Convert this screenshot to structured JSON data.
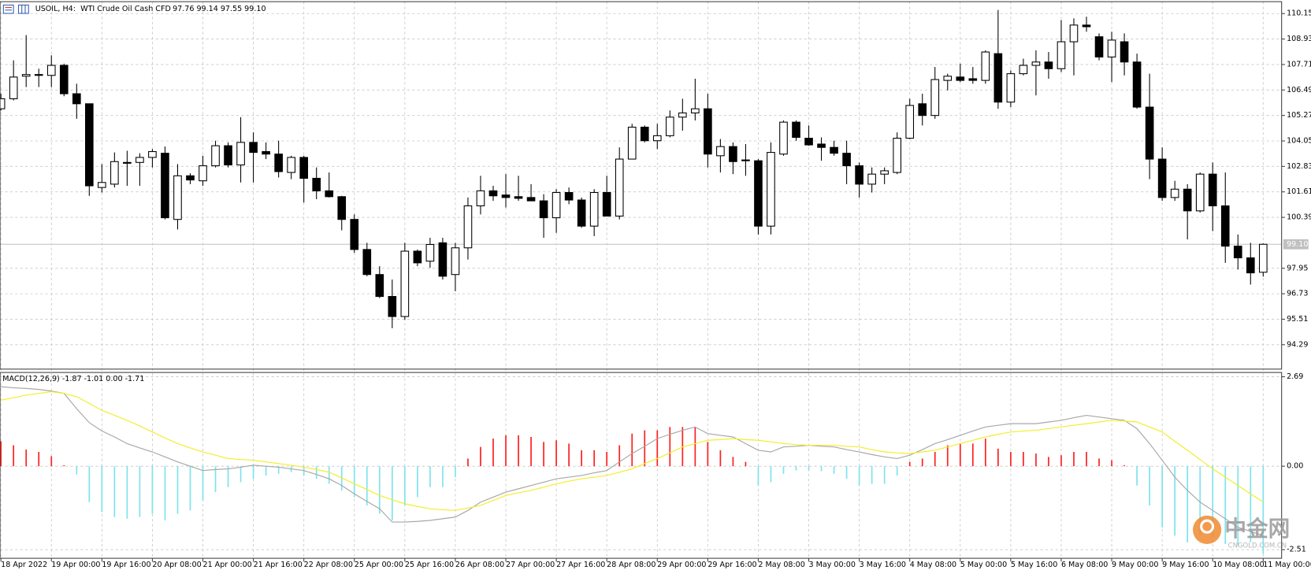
{
  "chart_data": [
    {
      "type": "candlestick",
      "title": "USOIL, H4:",
      "subtitle": "WTI Crude Oil Cash CFD",
      "ohlc_label": "97.76 99.14 97.55 99.10",
      "categories": [
        "18 Apr 2022",
        null,
        null,
        null,
        "19 Apr 00:00",
        null,
        null,
        null,
        "19 Apr 16:00",
        null,
        null,
        null,
        "20 Apr 08:00",
        null,
        null,
        null,
        "21 Apr 00:00",
        null,
        null,
        null,
        "21 Apr 16:00",
        null,
        null,
        null,
        "22 Apr 08:00",
        null,
        null,
        null,
        "25 Apr 00:00",
        null,
        null,
        null,
        "25 Apr 16:00",
        null,
        null,
        null,
        "26 Apr 08:00",
        null,
        null,
        null,
        "27 Apr 00:00",
        null,
        null,
        null,
        "27 Apr 16:00",
        null,
        null,
        null,
        "28 Apr 08:00",
        null,
        null,
        null,
        "29 Apr 00:00",
        null,
        null,
        null,
        "29 Apr 16:00",
        null,
        null,
        null,
        "2 May 08:00",
        null,
        null,
        null,
        "3 May 00:00",
        null,
        null,
        null,
        "3 May 16:00",
        null,
        null,
        null,
        "4 May 08:00",
        null,
        null,
        null,
        "5 May 00:00",
        null,
        null,
        null,
        "5 May 16:00",
        null,
        null,
        null,
        "6 May 08:00",
        null,
        null,
        null,
        "9 May 00:00",
        null,
        null,
        null,
        "9 May 16:00",
        null,
        null,
        null,
        "10 May 08:00",
        null,
        null,
        null,
        "11 May 00:00"
      ],
      "open": [
        105.59,
        106.07,
        107.15,
        107.19,
        107.19,
        107.67,
        106.31,
        105.83,
        101.82,
        101.98,
        102.98,
        103.02,
        103.26,
        103.46,
        100.29,
        102.38,
        102.14,
        102.86,
        103.82,
        102.9,
        103.98,
        103.54,
        103.42,
        102.54,
        103.26,
        102.26,
        101.66,
        101.38,
        100.29,
        98.85,
        97.65,
        96.6,
        95.64,
        98.77,
        98.29,
        99.17,
        97.65,
        98.93,
        100.94,
        101.66,
        101.46,
        101.38,
        101.34,
        101.18,
        100.37,
        101.58,
        101.22,
        99.97,
        101.58,
        100.45,
        103.18,
        104.71,
        104.06,
        104.3,
        105.19,
        105.39,
        105.59,
        103.34,
        103.78,
        103.14,
        103.1,
        99.97,
        103.42,
        104.95,
        104.18,
        103.9,
        103.74,
        103.46,
        102.86,
        101.98,
        102.46,
        102.54,
        104.18,
        105.83,
        105.27,
        106.95,
        107.11,
        107.03,
        106.95,
        108.23,
        105.91,
        107.27,
        107.67,
        107.83,
        107.51,
        108.8,
        109.6,
        109.04,
        108.07,
        108.8,
        107.83,
        105.67,
        103.18,
        101.34,
        101.74,
        100.7,
        102.46,
        100.94,
        99.01,
        98.45,
        97.76
      ],
      "high": [
        106.31,
        107.91,
        109.12,
        107.51,
        108.15,
        107.75,
        106.79,
        105.83,
        102.94,
        103.5,
        103.58,
        103.46,
        103.66,
        103.78,
        102.94,
        102.5,
        103.34,
        104.06,
        103.98,
        105.19,
        104.46,
        103.98,
        104.06,
        103.34,
        103.34,
        102.78,
        102.54,
        101.42,
        100.53,
        99.17,
        98.05,
        97.41,
        99.17,
        98.85,
        99.41,
        99.41,
        99.17,
        101.34,
        102.38,
        101.9,
        102.46,
        102.38,
        101.98,
        101.5,
        101.74,
        101.82,
        101.34,
        101.74,
        102.38,
        103.74,
        104.87,
        104.79,
        104.87,
        105.51,
        106.07,
        107.03,
        106.31,
        104.14,
        103.98,
        103.9,
        103.18,
        103.98,
        105.03,
        105.03,
        104.79,
        104.22,
        104.06,
        104.06,
        103.02,
        102.78,
        102.78,
        104.46,
        106.07,
        106.31,
        107.59,
        107.27,
        107.75,
        107.59,
        108.39,
        110.32,
        107.43,
        107.99,
        108.39,
        108.31,
        109.84,
        109.92,
        110.0,
        109.2,
        109.28,
        109.2,
        108.23,
        107.27,
        103.74,
        102.14,
        101.98,
        102.54,
        103.02,
        102.54,
        99.57,
        99.17,
        99.14
      ],
      "low": [
        105.51,
        105.99,
        106.63,
        106.63,
        106.63,
        106.19,
        105.11,
        101.42,
        101.58,
        101.82,
        101.9,
        101.9,
        102.78,
        100.29,
        99.81,
        101.98,
        101.9,
        102.78,
        102.78,
        102.06,
        102.06,
        103.18,
        102.3,
        102.22,
        101.1,
        101.26,
        101.34,
        99.77,
        98.69,
        97.57,
        96.52,
        95.08,
        95.48,
        98.05,
        97.97,
        97.41,
        96.85,
        98.37,
        100.53,
        101.18,
        100.86,
        101.18,
        101.18,
        99.41,
        99.65,
        101.02,
        99.89,
        99.49,
        100.45,
        100.29,
        103.18,
        103.98,
        103.66,
        104.22,
        104.54,
        105.03,
        102.78,
        102.54,
        102.46,
        102.38,
        99.57,
        99.57,
        103.34,
        104.06,
        103.82,
        103.1,
        103.34,
        101.98,
        101.34,
        101.58,
        101.98,
        102.46,
        104.14,
        104.79,
        105.11,
        106.47,
        106.87,
        106.79,
        106.79,
        105.59,
        105.67,
        107.19,
        106.23,
        107.03,
        107.35,
        107.19,
        109.28,
        107.91,
        106.87,
        107.19,
        105.59,
        102.22,
        101.18,
        101.18,
        99.33,
        100.62,
        99.73,
        98.21,
        97.89,
        97.17,
        97.55
      ],
      "close": [
        106.07,
        107.11,
        107.23,
        107.23,
        107.67,
        106.31,
        105.83,
        101.9,
        102.06,
        103.06,
        103.02,
        103.26,
        103.54,
        100.37,
        102.38,
        102.18,
        102.86,
        103.82,
        102.9,
        103.98,
        103.5,
        103.42,
        102.58,
        103.26,
        102.26,
        101.66,
        101.38,
        100.29,
        98.85,
        97.65,
        96.6,
        95.64,
        98.77,
        98.21,
        99.09,
        97.57,
        98.93,
        100.94,
        101.66,
        101.42,
        101.34,
        101.3,
        101.18,
        100.37,
        101.58,
        101.22,
        99.97,
        101.58,
        100.45,
        103.18,
        104.71,
        104.06,
        104.3,
        105.19,
        105.39,
        105.59,
        103.42,
        103.78,
        103.06,
        103.1,
        99.97,
        103.5,
        104.95,
        104.22,
        103.86,
        103.74,
        103.46,
        102.86,
        101.98,
        102.46,
        102.62,
        104.18,
        105.75,
        105.27,
        106.99,
        107.15,
        106.95,
        106.95,
        108.31,
        105.91,
        107.27,
        107.67,
        107.83,
        107.51,
        108.8,
        109.6,
        109.52,
        108.07,
        108.88,
        107.83,
        105.67,
        103.18,
        101.34,
        101.74,
        100.7,
        102.46,
        100.94,
        99.01,
        98.45,
        97.73,
        99.1
      ],
      "ylim": [
        93.12,
        110.72
      ],
      "yticks": [
        110.15,
        108.93,
        107.71,
        106.49,
        105.27,
        104.05,
        102.83,
        101.61,
        {
          "value": 100.39,
          "label": "100.39"
        },
        97.95,
        96.73,
        95.51,
        94.29
      ],
      "last_price": {
        "value": 99.1,
        "label": "99.10"
      },
      "grid": true,
      "up_color": "#ffffff",
      "down_color": "#000000",
      "line_color": "#000000"
    },
    {
      "type": "macd",
      "title": "MACD(12,26,9) -1.87 -1.01 0.00 -1.71",
      "histogram": {
        "color": "#ff2020",
        "negative_color": "#7fe3ee",
        "values": [
          0.75,
          0.63,
          0.5,
          0.43,
          0.3,
          0.03,
          -0.25,
          -1.08,
          -1.38,
          -1.53,
          -1.58,
          -1.53,
          -1.43,
          -1.63,
          -1.43,
          -1.33,
          -1.03,
          -0.78,
          -0.63,
          -0.48,
          -0.38,
          -0.28,
          -0.23,
          -0.18,
          -0.28,
          -0.38,
          -0.53,
          -0.73,
          -0.93,
          -1.18,
          -1.43,
          -1.63,
          -1.18,
          -0.93,
          -0.63,
          -0.63,
          -0.33,
          0.23,
          0.58,
          0.83,
          0.93,
          0.93,
          0.88,
          0.73,
          0.78,
          0.68,
          0.48,
          0.48,
          0.43,
          0.63,
          0.98,
          1.08,
          1.08,
          1.18,
          1.18,
          1.18,
          0.73,
          0.48,
          0.28,
          0.13,
          -0.58,
          -0.48,
          -0.23,
          -0.13,
          -0.13,
          -0.15,
          -0.23,
          -0.38,
          -0.58,
          -0.53,
          -0.53,
          -0.28,
          0.13,
          0.23,
          0.43,
          0.63,
          0.68,
          0.68,
          0.83,
          0.53,
          0.43,
          0.43,
          0.38,
          0.28,
          0.33,
          0.43,
          0.43,
          0.23,
          0.18,
          0.03,
          -0.58,
          -1.18,
          -1.84,
          -2.09,
          -2.29,
          -2.09,
          -2.14,
          -2.34,
          -2.39,
          -2.29,
          -2.64
        ]
      },
      "main": {
        "color": "#a8a8a8",
        "values": [
          2.39,
          2.36,
          2.34,
          2.31,
          2.26,
          2.19,
          1.73,
          1.31,
          1.06,
          0.88,
          0.68,
          0.55,
          0.43,
          0.28,
          0.13,
          0,
          -0.13,
          -0.1,
          -0.08,
          -0.03,
          0.03,
          0,
          -0.03,
          -0.08,
          -0.13,
          -0.25,
          -0.38,
          -0.58,
          -0.83,
          -1.06,
          -1.28,
          -1.68,
          -1.68,
          -1.66,
          -1.63,
          -1.58,
          -1.53,
          -1.33,
          -1.08,
          -0.93,
          -0.78,
          -0.68,
          -0.58,
          -0.48,
          -0.38,
          -0.33,
          -0.28,
          -0.2,
          -0.13,
          0.13,
          0.38,
          0.6,
          0.83,
          0.96,
          1.08,
          1.18,
          0.98,
          0.93,
          0.88,
          0.68,
          0.48,
          0.43,
          0.58,
          0.6,
          0.63,
          0.6,
          0.58,
          0.5,
          0.43,
          0.35,
          0.28,
          0.23,
          0.33,
          0.5,
          0.68,
          0.8,
          0.93,
          1.06,
          1.18,
          1.23,
          1.28,
          1.28,
          1.28,
          1.33,
          1.38,
          1.46,
          1.53,
          1.48,
          1.43,
          1.38,
          1.13,
          0.68,
          0.18,
          -0.33,
          -0.73,
          -1.08,
          -1.33,
          -1.58,
          -1.84,
          -1.96,
          -2.09
        ]
      },
      "signal": {
        "color": "#f2ee2a",
        "values": [
          1.99,
          2.06,
          2.14,
          2.19,
          2.24,
          2.19,
          2.09,
          1.89,
          1.68,
          1.53,
          1.38,
          1.21,
          1.03,
          0.85,
          0.68,
          0.55,
          0.43,
          0.33,
          0.23,
          0.2,
          0.18,
          0.13,
          0.08,
          0.03,
          -0.03,
          -0.1,
          -0.18,
          -0.35,
          -0.53,
          -0.7,
          -0.88,
          -1.01,
          -1.13,
          -1.21,
          -1.28,
          -1.31,
          -1.33,
          -1.26,
          -1.18,
          -1.03,
          -0.88,
          -0.8,
          -0.73,
          -0.63,
          -0.53,
          -0.45,
          -0.38,
          -0.33,
          -0.28,
          -0.18,
          -0.08,
          0.08,
          0.23,
          0.4,
          0.58,
          0.68,
          0.78,
          0.8,
          0.83,
          0.8,
          0.78,
          0.73,
          0.68,
          0.65,
          0.63,
          0.63,
          0.63,
          0.6,
          0.58,
          0.5,
          0.43,
          0.4,
          0.38,
          0.43,
          0.48,
          0.58,
          0.68,
          0.78,
          0.88,
          0.96,
          1.03,
          1.06,
          1.08,
          1.13,
          1.18,
          1.23,
          1.28,
          1.33,
          1.38,
          1.36,
          1.33,
          1.18,
          1.03,
          0.75,
          0.48,
          0.2,
          -0.08,
          -0.33,
          -0.58,
          -0.83,
          -1.08
        ]
      },
      "ylim": [
        -2.77,
        2.82
      ],
      "yticks": [
        2.69,
        {
          "value": 0,
          "label": "0.00"
        },
        -2.51
      ]
    }
  ],
  "watermark": {
    "title": "中金网",
    "subtitle": "CNGOLD.COM.CN"
  }
}
